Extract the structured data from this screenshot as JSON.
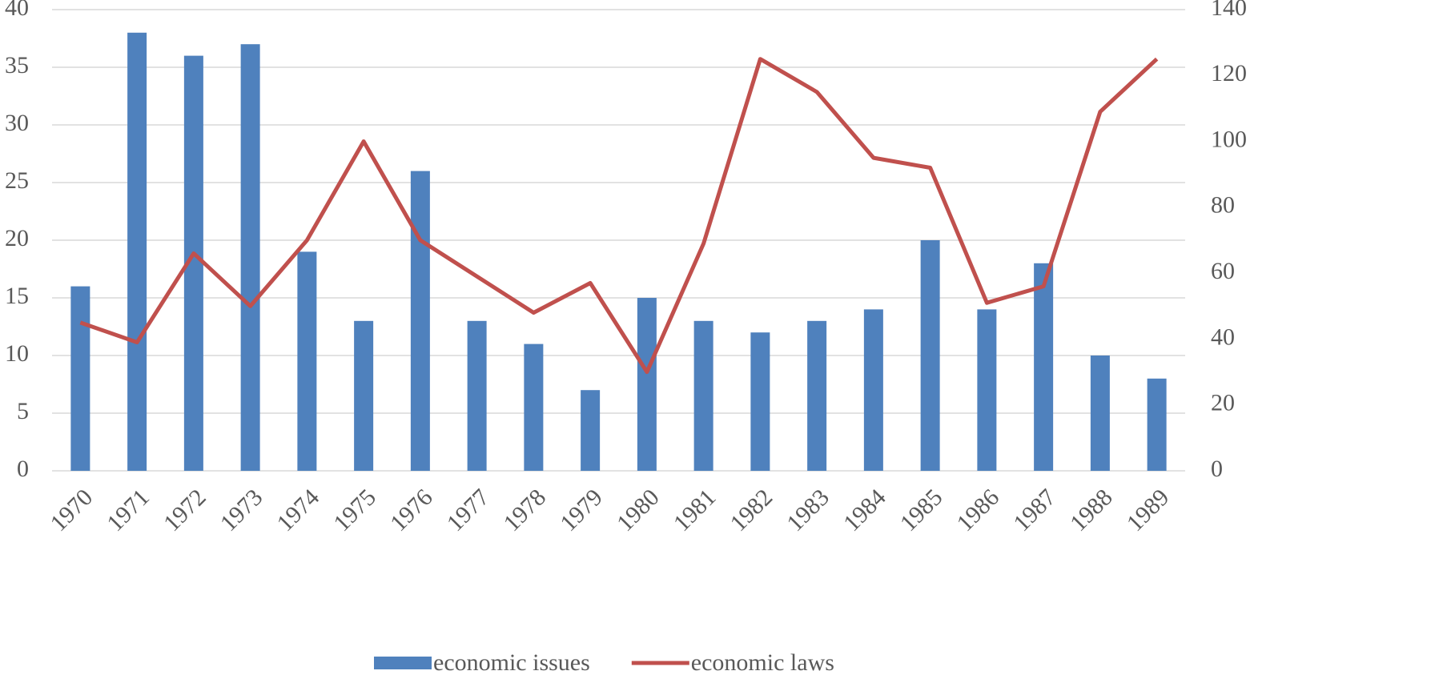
{
  "chart_data": {
    "type": "bar",
    "categories": [
      "1970",
      "1971",
      "1972",
      "1973",
      "1974",
      "1975",
      "1976",
      "1977",
      "1978",
      "1979",
      "1980",
      "1981",
      "1982",
      "1983",
      "1984",
      "1985",
      "1986",
      "1987",
      "1988",
      "1989"
    ],
    "series": [
      {
        "name": "economic issues",
        "type": "bar",
        "color": "#4f81bd",
        "values": [
          16,
          38,
          36,
          37,
          19,
          13,
          26,
          13,
          11,
          7,
          15,
          13,
          12,
          13,
          14,
          20,
          14,
          18,
          10,
          8
        ]
      },
      {
        "name": "economic laws",
        "type": "line",
        "axis": "y2",
        "color": "#c0504d",
        "values": [
          45,
          39,
          66,
          50,
          70,
          100,
          70,
          59,
          48,
          57,
          30,
          69,
          125,
          115,
          95,
          92,
          51,
          56,
          109,
          125
        ]
      }
    ],
    "ylim": [
      0,
      40
    ],
    "yticks": [
      0,
      5,
      10,
      15,
      20,
      25,
      30,
      35,
      40
    ],
    "y2lim": [
      0,
      140
    ],
    "y2ticks": [
      0,
      20,
      40,
      60,
      80,
      100,
      120,
      140
    ],
    "grid": true,
    "legend": "bottom"
  }
}
